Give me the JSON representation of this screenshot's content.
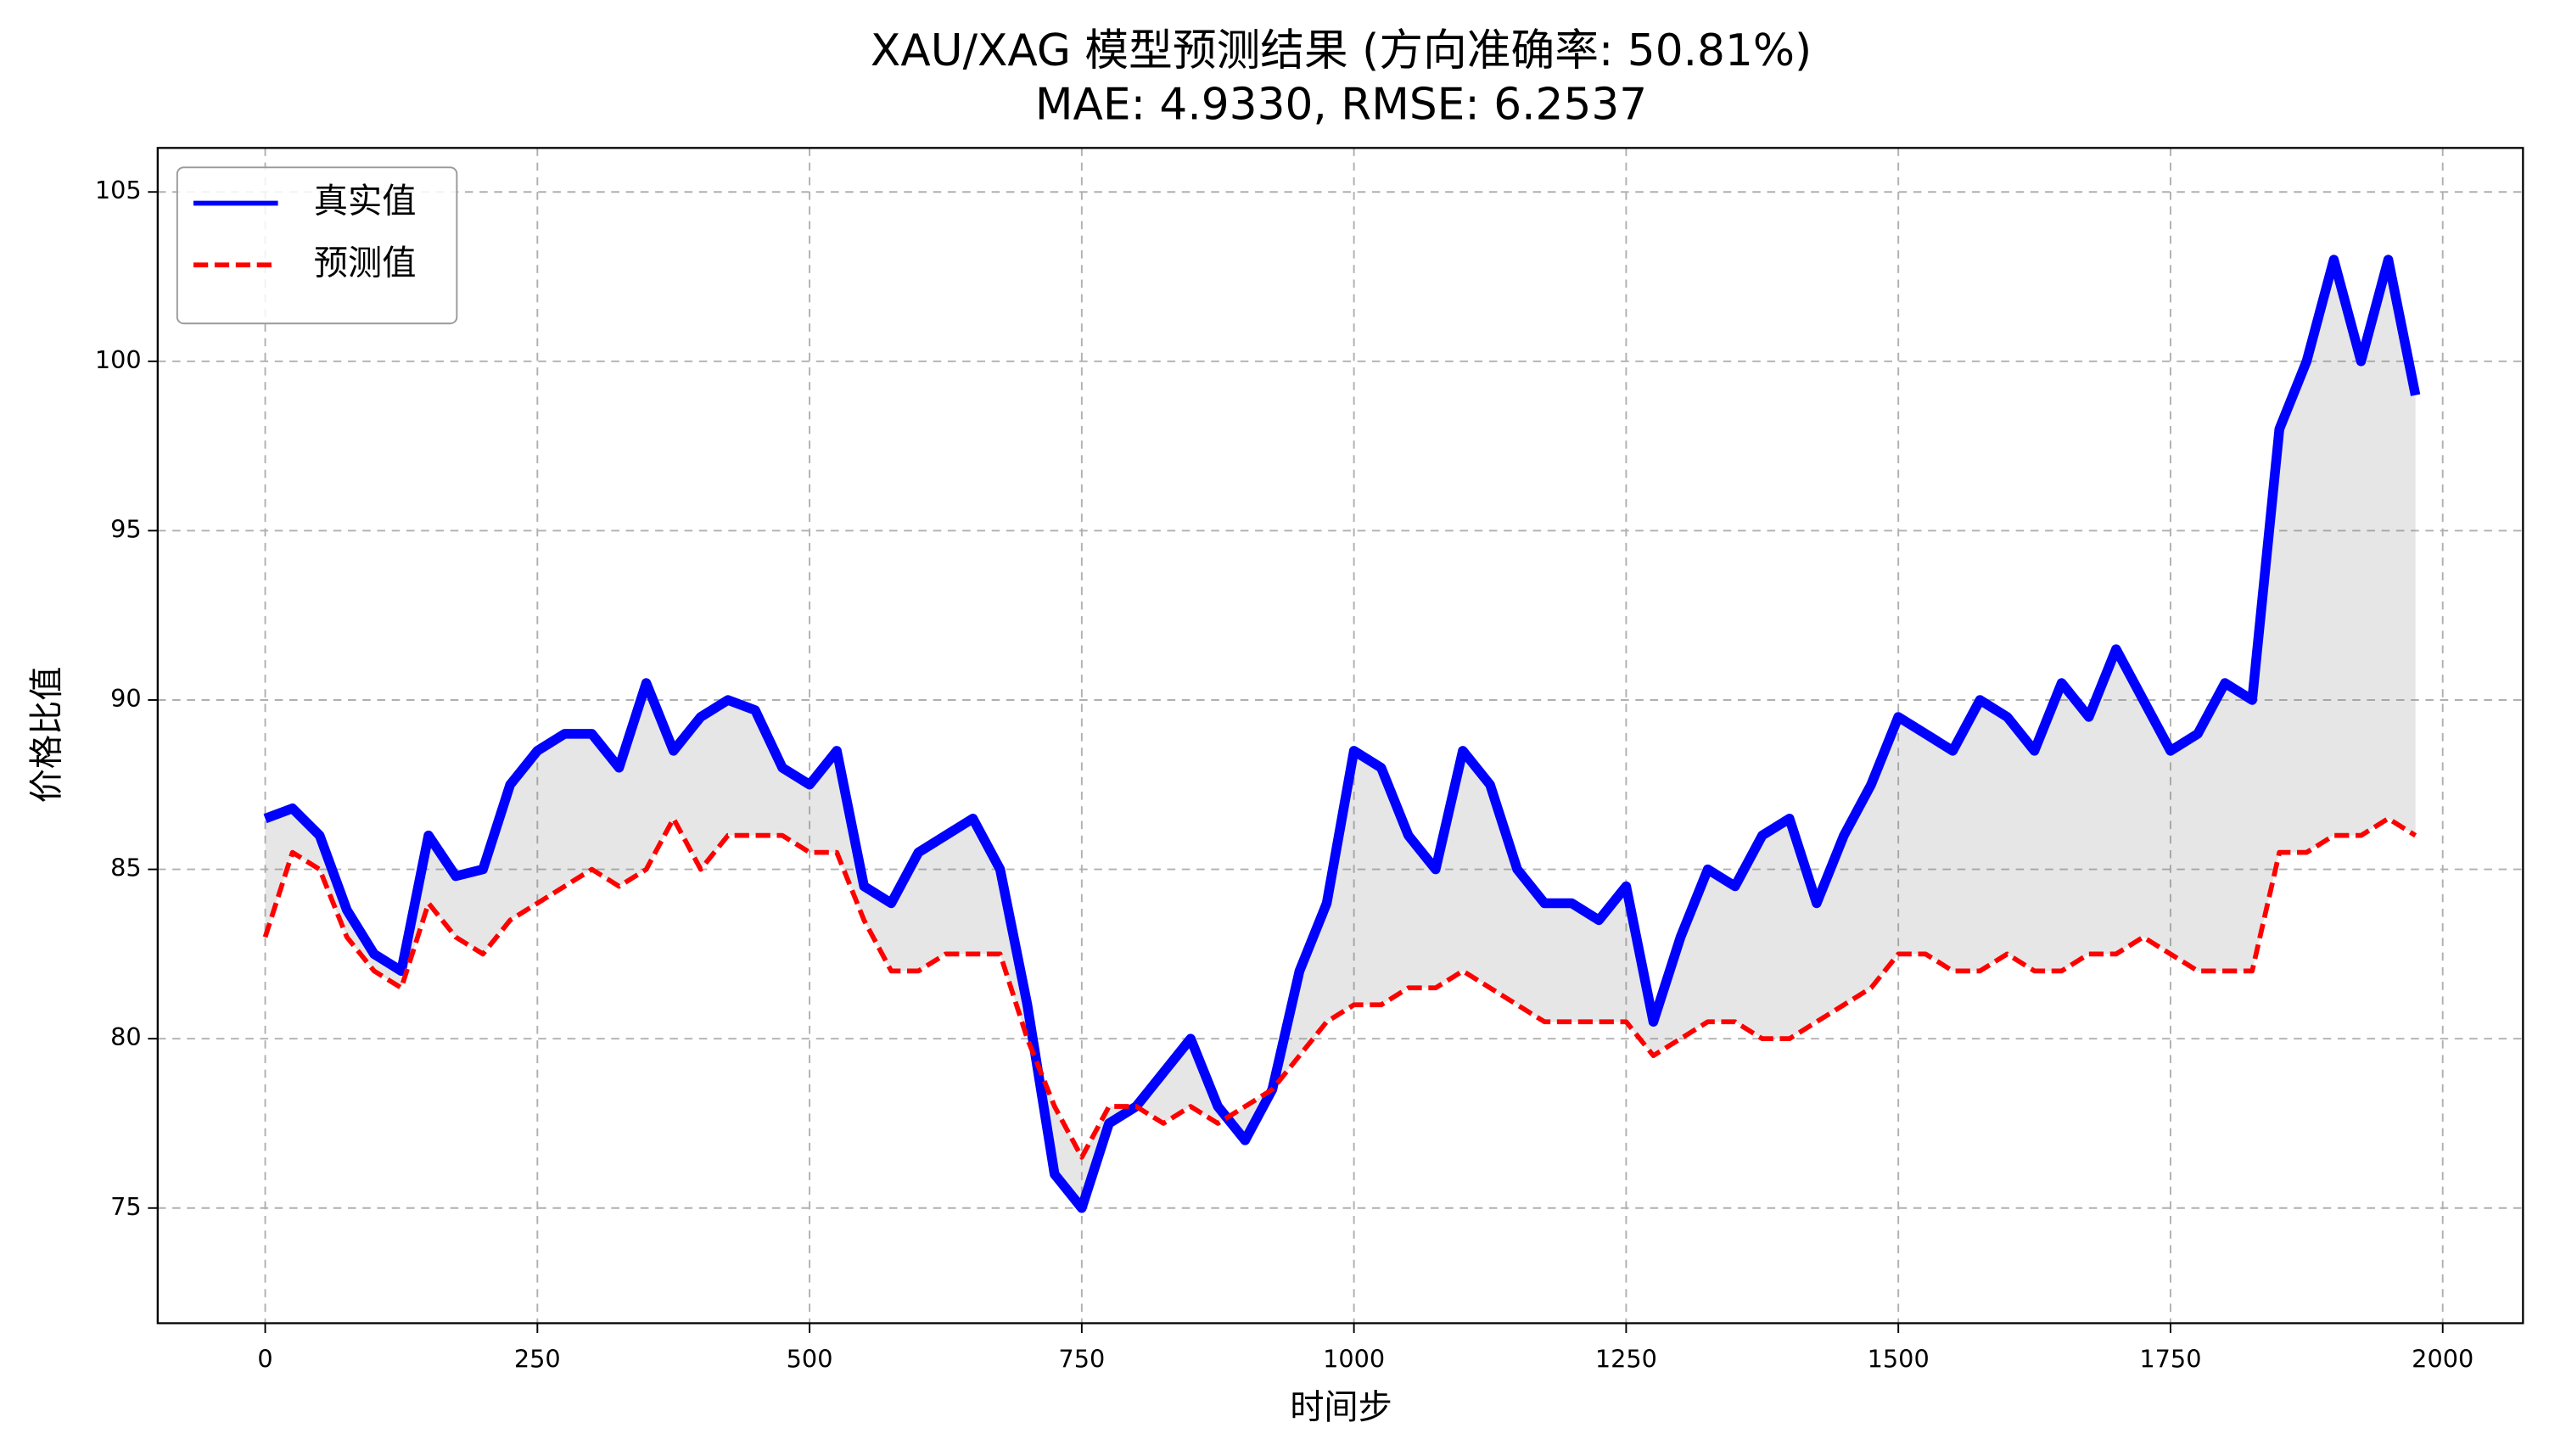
{
  "chart_data": {
    "type": "line",
    "title": "XAU/XAG 模型预测结果 (方向准确率: 50.81%)",
    "subtitle": "MAE: 4.9330, RMSE: 6.2537",
    "x_label": "时间步",
    "y_label": "价格比值",
    "x": [
      0,
      25,
      50,
      75,
      100,
      125,
      150,
      175,
      200,
      225,
      250,
      275,
      300,
      325,
      350,
      375,
      400,
      425,
      450,
      475,
      500,
      525,
      550,
      575,
      600,
      625,
      650,
      675,
      700,
      725,
      750,
      775,
      800,
      825,
      850,
      875,
      900,
      925,
      950,
      975,
      1000,
      1025,
      1050,
      1075,
      1100,
      1125,
      1150,
      1175,
      1200,
      1225,
      1250,
      1275,
      1300,
      1325,
      1350,
      1375,
      1400,
      1425,
      1450,
      1475,
      1500,
      1525,
      1550,
      1575,
      1600,
      1625,
      1650,
      1675,
      1700,
      1725,
      1750,
      1775,
      1800,
      1825,
      1850,
      1875,
      1900,
      1925,
      1950,
      1975
    ],
    "series": [
      {
        "name": "真实值",
        "color": "#0000ff",
        "dash": false,
        "values": [
          86.5,
          86.8,
          86,
          83.8,
          82.5,
          82,
          86,
          84.8,
          85,
          87.5,
          88.5,
          89,
          89,
          88,
          90.5,
          88.5,
          89.5,
          90,
          89.7,
          88,
          87.5,
          88.5,
          84.5,
          84,
          85.5,
          86,
          86.5,
          85,
          81,
          76,
          75,
          77.5,
          78,
          79,
          80,
          78,
          77,
          78.5,
          82,
          84,
          88.5,
          88,
          86,
          85,
          88.5,
          87.5,
          85,
          84,
          84,
          83.5,
          84.5,
          80.5,
          83,
          85,
          84.5,
          86,
          86.5,
          84,
          86,
          87.5,
          89.5,
          89,
          88.5,
          90,
          89.5,
          88.5,
          90.5,
          89.5,
          91.5,
          90,
          88.5,
          89,
          90.5,
          90,
          98,
          100,
          103,
          100,
          103,
          99
        ]
      },
      {
        "name": "预测值",
        "color": "#ff0000",
        "dash": true,
        "values": [
          83,
          85.5,
          85,
          83,
          82,
          81.5,
          84,
          83,
          82.5,
          83.5,
          84,
          84.5,
          85,
          84.5,
          85,
          86.5,
          85,
          86,
          86,
          86,
          85.5,
          85.5,
          83.5,
          82,
          82,
          82.5,
          82.5,
          82.5,
          80,
          78,
          76.5,
          78,
          78,
          77.5,
          78,
          77.5,
          78,
          78.5,
          79.5,
          80.5,
          81,
          81,
          81.5,
          81.5,
          82,
          81.5,
          81,
          80.5,
          80.5,
          80.5,
          80.5,
          79.5,
          80,
          80.5,
          80.5,
          80,
          80,
          80.5,
          81,
          81.5,
          82.5,
          82.5,
          82,
          82,
          82.5,
          82,
          82,
          82.5,
          82.5,
          83,
          82.5,
          82,
          82,
          82,
          85.5,
          85.5,
          86,
          86,
          86.5,
          86
        ]
      }
    ],
    "fill_between": true,
    "xlim": [
      -98.75,
      2073.75
    ],
    "xticks": [
      0,
      250,
      500,
      750,
      1000,
      1250,
      1500,
      1750,
      2000
    ],
    "ylim": [
      71.6,
      106.3
    ],
    "yticks": [
      75,
      80,
      85,
      90,
      95,
      100,
      105
    ],
    "grid": true,
    "legend": "upper left"
  }
}
